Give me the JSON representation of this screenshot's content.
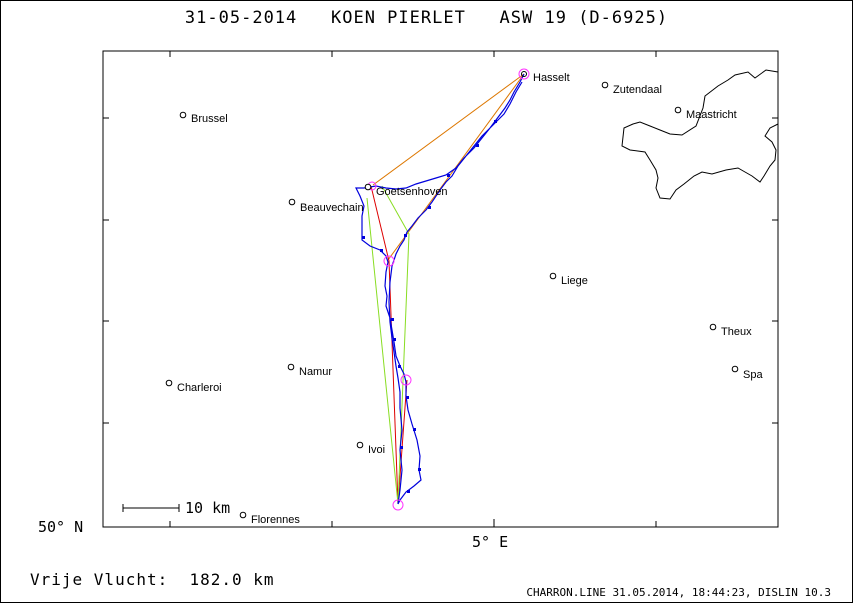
{
  "header": {
    "date": "31-05-2014",
    "pilot": "KOEN PIERLET",
    "glider": "ASW 19 (D-6925)"
  },
  "map": {
    "latitude_label": "50° N",
    "longitude_label": "5° E",
    "scale_label": "10 km",
    "places": [
      {
        "name": "Hasselt",
        "icon": "turnpoint-circle-icon"
      },
      {
        "name": "Zutendaal",
        "icon": "town-circle-icon"
      },
      {
        "name": "Maastricht",
        "icon": "town-circle-icon"
      },
      {
        "name": "Brussel",
        "icon": "town-circle-icon"
      },
      {
        "name": "Goetsenhoven",
        "icon": "airfield-icon"
      },
      {
        "name": "Beauvechain",
        "icon": "town-circle-icon"
      },
      {
        "name": "Liege",
        "icon": "town-circle-icon"
      },
      {
        "name": "Theux",
        "icon": "town-circle-icon"
      },
      {
        "name": "Spa",
        "icon": "town-circle-icon"
      },
      {
        "name": "Namur",
        "icon": "town-circle-icon"
      },
      {
        "name": "Charleroi",
        "icon": "town-circle-icon"
      },
      {
        "name": "Ivoi",
        "icon": "town-circle-icon"
      },
      {
        "name": "Florennes",
        "icon": "town-circle-icon"
      }
    ],
    "colors": {
      "track": "#0000dd",
      "task_orange": "#dd7700",
      "task_red": "#dd0000",
      "task_green": "#88dd22",
      "turnpoint": "#ff33ff",
      "border": "#000000"
    }
  },
  "footer": {
    "distance_label": "Vrije Vlucht:",
    "distance_value": "182.0 km",
    "info": "CHARRON.LINE 31.05.2014, 18:44:23, DISLIN 10.3"
  }
}
